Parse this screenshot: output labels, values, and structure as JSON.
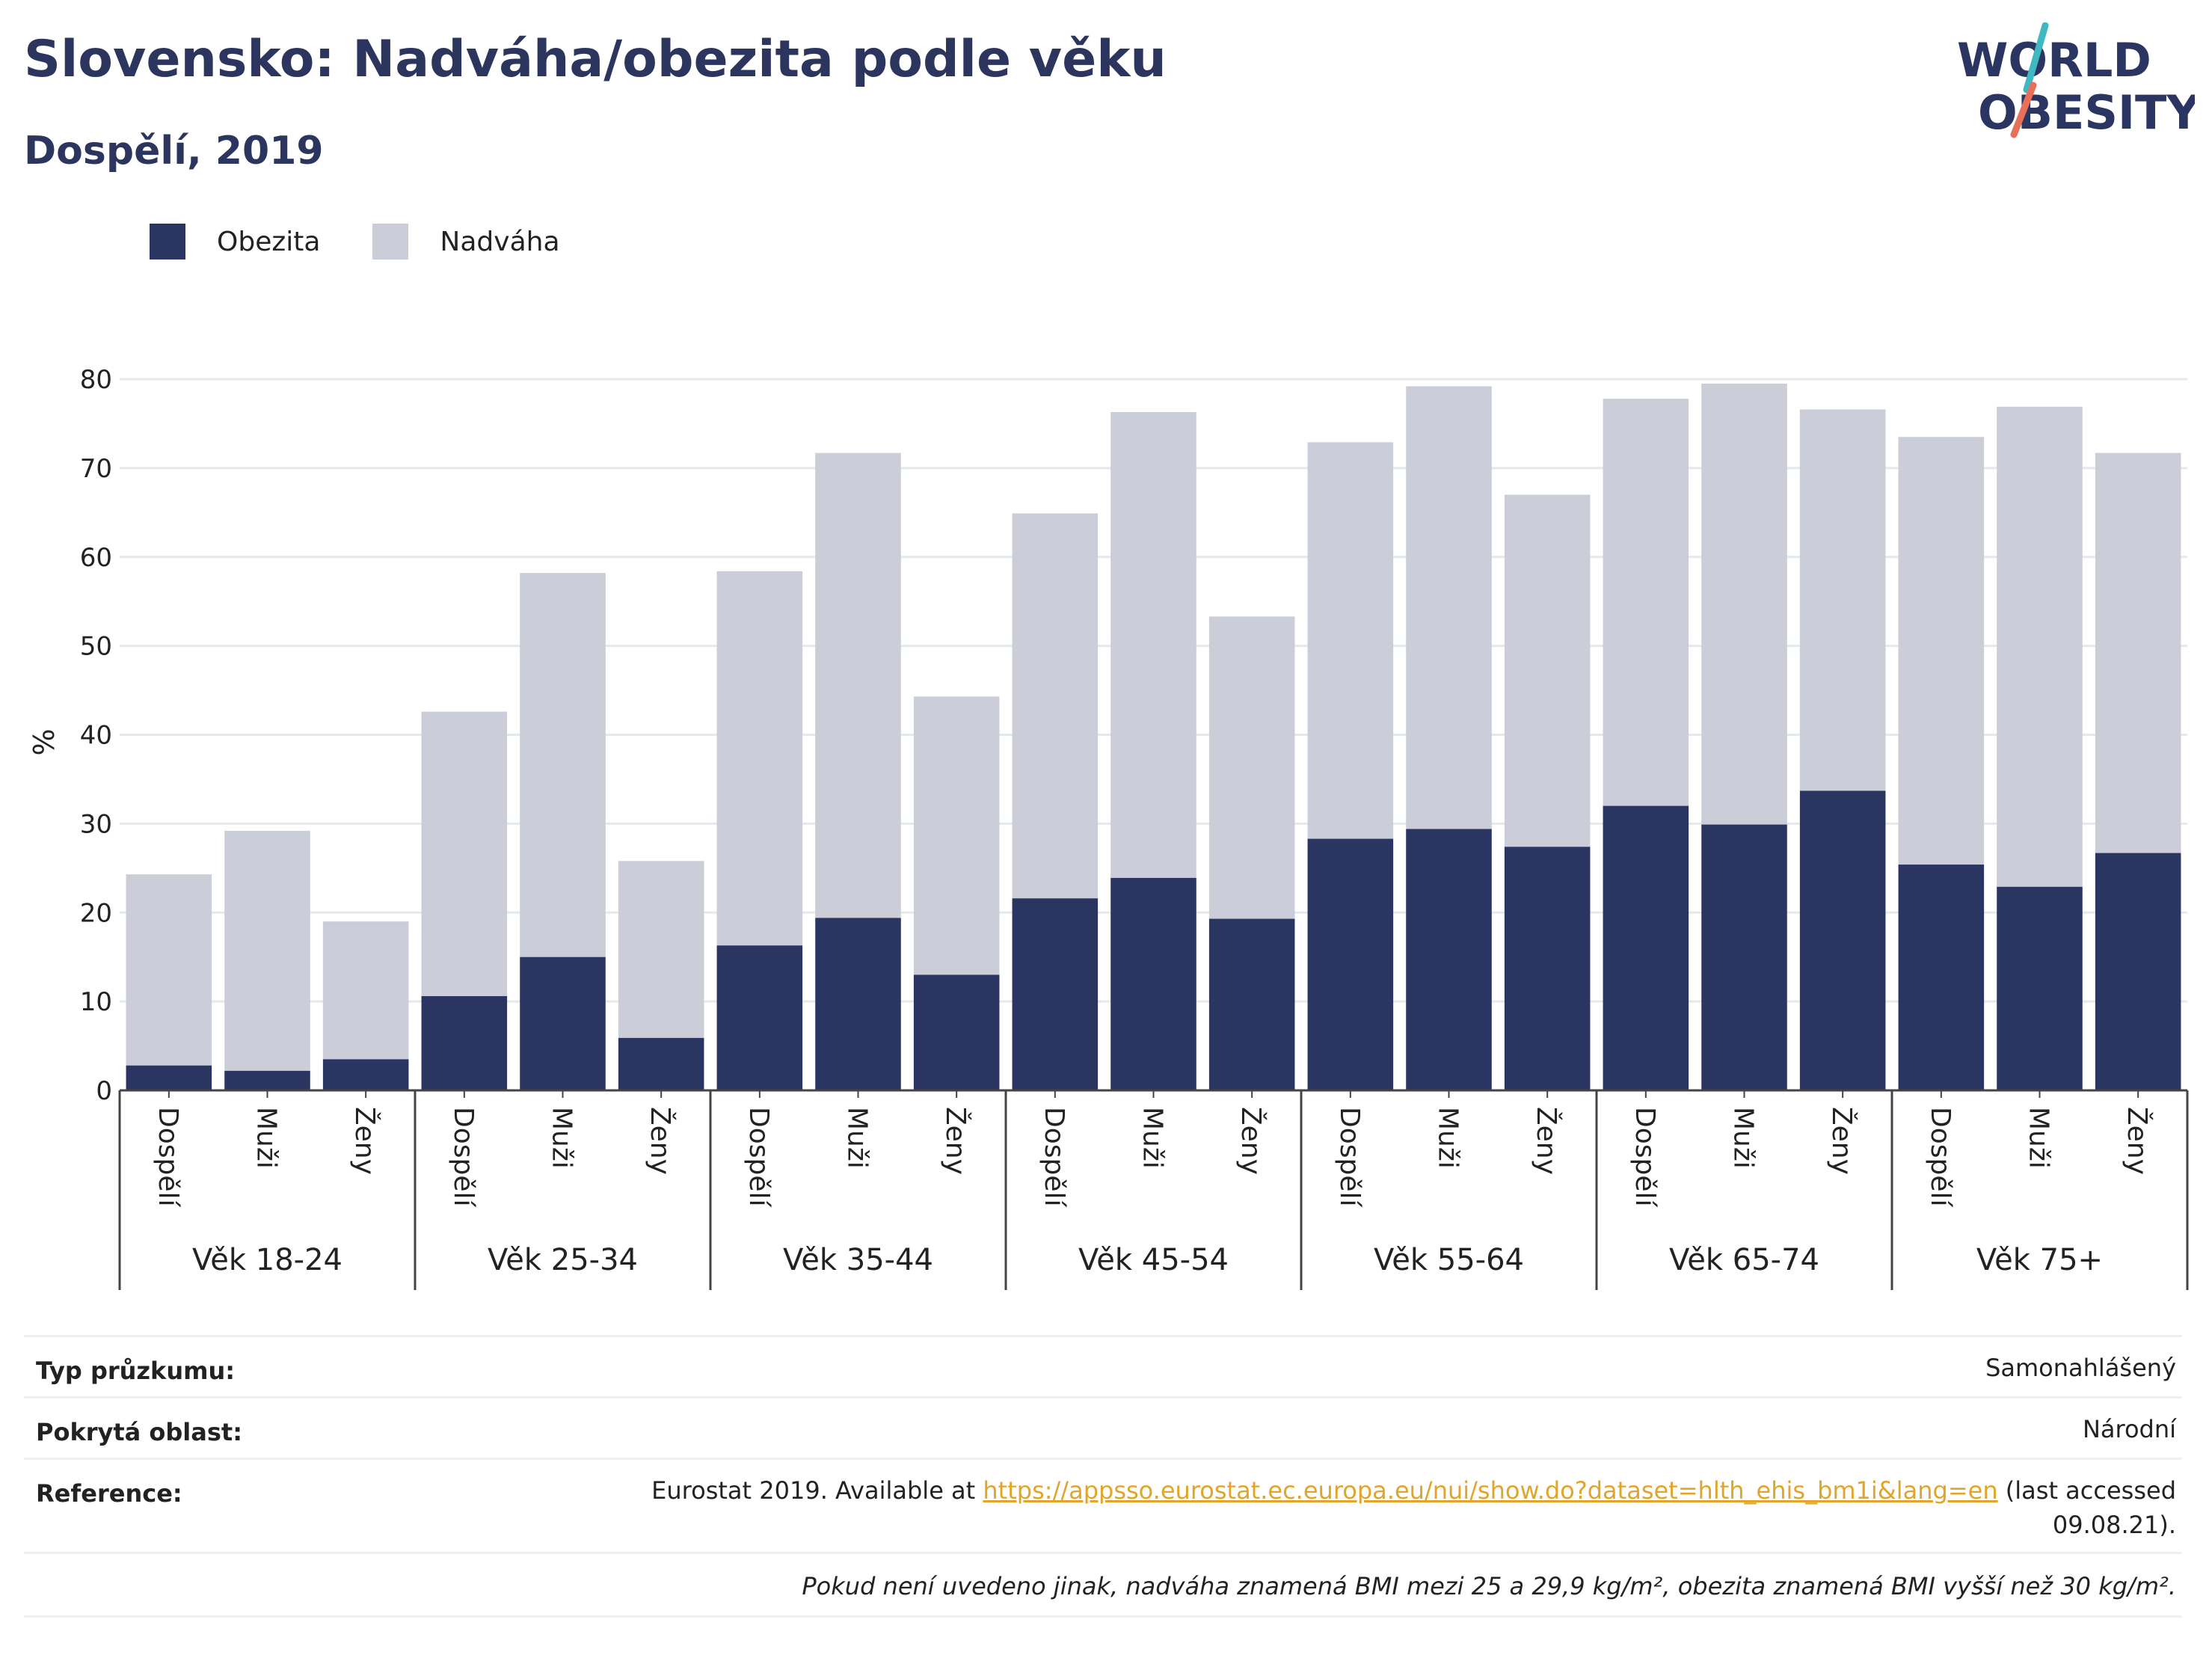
{
  "title": "Slovensko: Nadváha/obezita podle věku",
  "subtitle": "Dospělí, 2019",
  "logo": {
    "line1": "WORLD",
    "line2": "OBESITY",
    "accent_colors": [
      "#3fb8c1",
      "#e8705a"
    ]
  },
  "legend": [
    {
      "label": "Obezita",
      "color": "#2b3562"
    },
    {
      "label": "Nadváha",
      "color": "#cbcdd8"
    }
  ],
  "chart_data": {
    "type": "bar",
    "stacked": true,
    "ylabel": "%",
    "ylim": [
      0,
      80
    ],
    "yticks": [
      0,
      10,
      20,
      30,
      40,
      50,
      60,
      70,
      80
    ],
    "grid": true,
    "legend_position": "top-left",
    "groups": [
      "Věk 18-24",
      "Věk 25-34",
      "Věk 35-44",
      "Věk 45-54",
      "Věk 55-64",
      "Věk 65-74",
      "Věk 75+"
    ],
    "subcategories": [
      "Dospělí",
      "Muži",
      "Ženy"
    ],
    "series": [
      {
        "name": "Obezita",
        "color": "#2b3562",
        "values": [
          2.8,
          2.2,
          3.5,
          10.6,
          15.0,
          5.9,
          16.3,
          19.4,
          13.0,
          21.6,
          23.9,
          19.3,
          28.3,
          29.4,
          27.4,
          32.0,
          29.9,
          33.7,
          25.4,
          22.9,
          26.7
        ]
      },
      {
        "name": "Nadváha",
        "color": "#cbcdd8",
        "values": [
          21.5,
          27.0,
          15.5,
          32.0,
          43.2,
          19.9,
          42.1,
          52.3,
          31.3,
          43.3,
          52.4,
          34.0,
          44.6,
          49.8,
          39.6,
          45.8,
          49.6,
          42.9,
          48.1,
          54.0,
          45.0
        ]
      }
    ],
    "totals": [
      24.3,
      29.2,
      19.0,
      42.6,
      58.2,
      25.8,
      58.4,
      71.7,
      44.3,
      64.9,
      76.3,
      53.3,
      72.9,
      79.2,
      67.0,
      77.8,
      79.5,
      76.6,
      73.5,
      76.9,
      71.7
    ]
  },
  "info": {
    "survey_type_label": "Typ průzkumu:",
    "survey_type_value": "Samonahlášený",
    "coverage_label": "Pokrytá oblast:",
    "coverage_value": "Národní",
    "reference_label": "Reference:",
    "reference_prefix": "Eurostat 2019. Available at ",
    "reference_link": "https://appsso.eurostat.ec.europa.eu/nui/show.do?dataset=hlth_ehis_bm1i&lang=en",
    "reference_suffix": " (last accessed",
    "reference_line2": "09.08.21).",
    "note": "Pokud není uvedeno jinak, nadváha znamená BMI mezi 25 a 29,9 kg/m², obezita znamená BMI vyšší než 30 kg/m²."
  }
}
